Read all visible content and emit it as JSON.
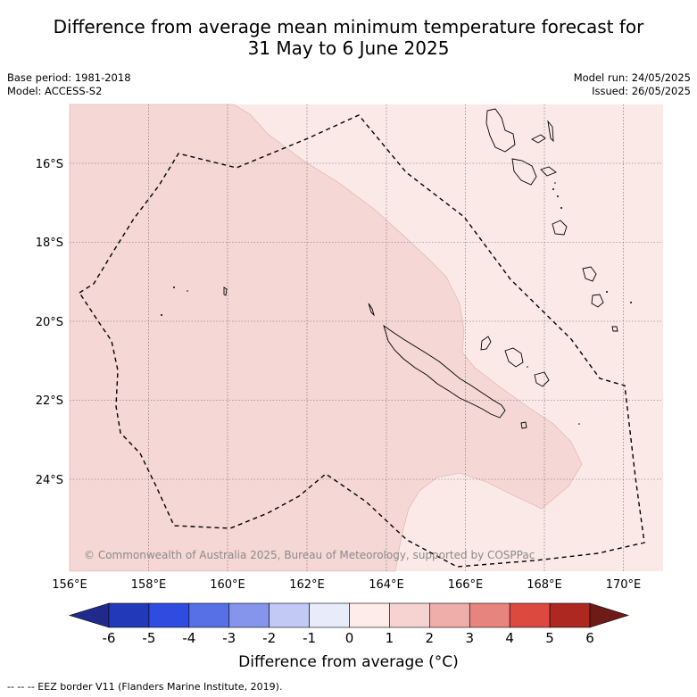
{
  "title_line1": "Difference from average mean minimum temperature forecast for",
  "title_line2": "31 May to 6 June 2025",
  "base_period": "Base period: 1981-2018",
  "model": "Model: ACCESS-S2",
  "model_run": "Model run: 24/05/2025",
  "issued": "Issued: 26/05/2025",
  "copyright": "© Commonwealth of Australia 2025, Bureau of Meteorology, supported by COSPPac",
  "lon_ticks": [
    "156°E",
    "158°E",
    "160°E",
    "162°E",
    "164°E",
    "166°E",
    "168°E",
    "170°E"
  ],
  "lat_ticks": [
    "16°S",
    "18°S",
    "20°S",
    "22°S",
    "24°S"
  ],
  "colorbar_ticks": [
    "-6",
    "-5",
    "-4",
    "-3",
    "-2",
    "-1",
    "0",
    "1",
    "2",
    "3",
    "4",
    "5",
    "6"
  ],
  "colorbar_colors": [
    "#1f2a8c",
    "#223aba",
    "#2f4be0",
    "#5870e6",
    "#8595eb",
    "#c2c9f5",
    "#e8ebfa",
    "#fdecea",
    "#f6d3d1",
    "#f0aeaa",
    "#e8847e",
    "#dc4a3f",
    "#ad2820",
    "#6e1a17"
  ],
  "colorbar_label": "Difference from average (°C)",
  "footnote": "--  --  -- EEZ border V11 (Flanders Marine Institute, 2019).",
  "map_colors": {
    "zone_0_to_1": "#fbe9e8",
    "zone_1_to_2": "#f5d7d5"
  }
}
